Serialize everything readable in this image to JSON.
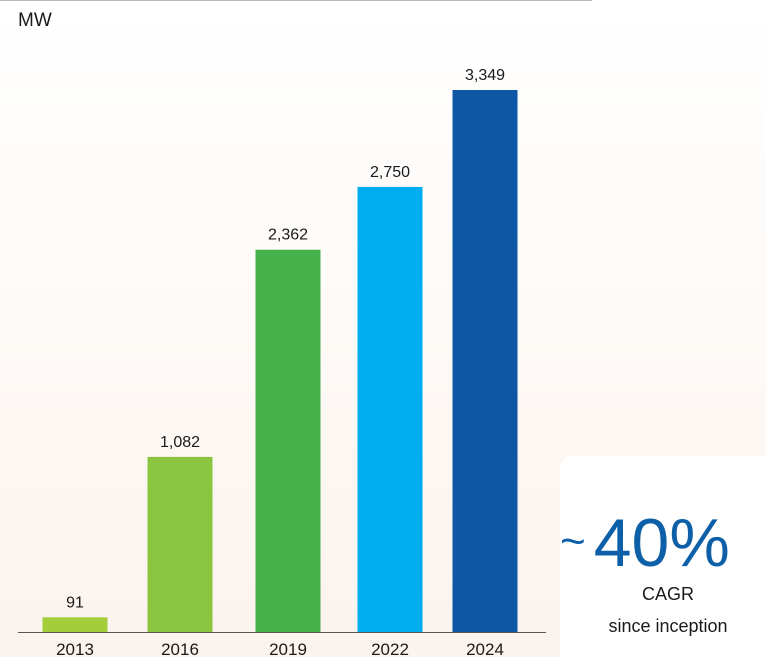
{
  "chart_data": {
    "type": "bar",
    "unit": "MW",
    "categories": [
      "2013",
      "2016",
      "2019",
      "2022",
      "2024"
    ],
    "values": [
      91,
      1082,
      2362,
      2750,
      3349
    ],
    "value_labels": [
      "91",
      "1,082",
      "2,362",
      "2,750",
      "3,349"
    ],
    "colors": [
      "#a3cd3a",
      "#8bc53f",
      "#46b04a",
      "#00adee",
      "#0d57a4"
    ],
    "ylim": [
      0,
      3349
    ],
    "grid": false,
    "legend": "none"
  },
  "callout": {
    "tilde": "~",
    "value": "40%",
    "label_line1": "CAGR",
    "label_line2": "since inception"
  }
}
